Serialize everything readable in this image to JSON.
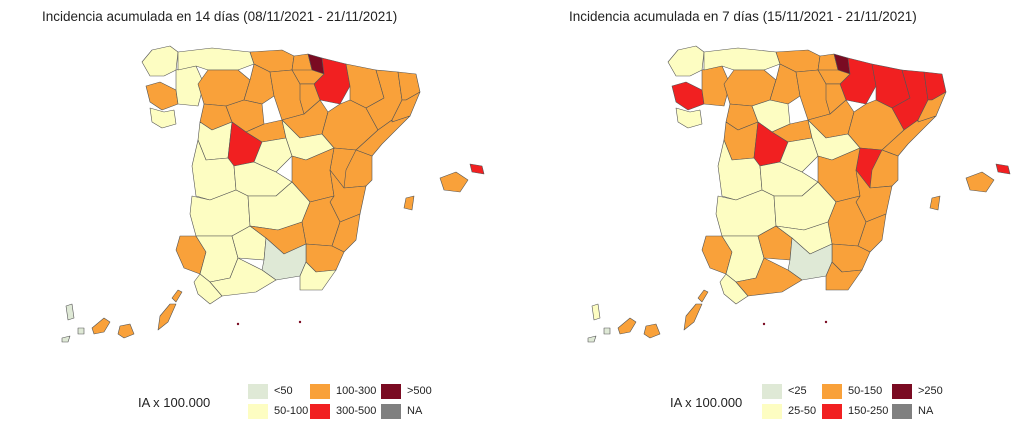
{
  "colors": {
    "light_green": "#dfe9d6",
    "light_yellow": "#fdfdc2",
    "orange": "#f9a13a",
    "red": "#f12021",
    "dark_red": "#7a0b22",
    "grey": "#808080",
    "border": "#555555"
  },
  "maps": [
    {
      "title": "Incidencia acumulada en 14 días (08/11/2021 - 21/11/2021)",
      "legend_title": "IA x 100.000",
      "legend_items": [
        {
          "label": "<50",
          "color": "#dfe9d6"
        },
        {
          "label": "50-100",
          "color": "#fdfdc2"
        },
        {
          "label": "100-300",
          "color": "#f9a13a"
        },
        {
          "label": "300-500",
          "color": "#f12021"
        },
        {
          "label": ">500",
          "color": "#7a0b22"
        },
        {
          "label": "NA",
          "color": "#808080"
        }
      ],
      "region_colors": {
        "galicia_n": "#fdfdc2",
        "galicia_w": "#f9a13a",
        "galicia_s": "#fdfdc2",
        "galicia_e": "#fdfdc2",
        "asturias": "#fdfdc2",
        "cantabria": "#f9a13a",
        "vizcaya": "#f9a13a",
        "guipuzcoa": "#7a0b22",
        "navarra": "#f12021",
        "alava": "#f9a13a",
        "leon": "#f9a13a",
        "palencia": "#f9a13a",
        "burgos": "#f9a13a",
        "zamora": "#f9a13a",
        "valladolid": "#f9a13a",
        "soria": "#f9a13a",
        "la_rioja": "#f9a13a",
        "huesca": "#f9a13a",
        "zaragoza": "#f9a13a",
        "teruel": "#f9a13a",
        "lleida": "#f9a13a",
        "girona": "#f9a13a",
        "barcelona": "#f9a13a",
        "tarragona": "#f9a13a",
        "salamanca": "#fdfdc2",
        "avila": "#f12021",
        "segovia": "#f9a13a",
        "madrid": "#fdfdc2",
        "guadalajara": "#fdfdc2",
        "caceres": "#fdfdc2",
        "toledo": "#fdfdc2",
        "cuenca": "#f9a13a",
        "castellon": "#f9a13a",
        "valencia": "#f9a13a",
        "badajoz": "#fdfdc2",
        "ciudad_real": "#fdfdc2",
        "albacete": "#f9a13a",
        "alicante": "#f9a13a",
        "murcia": "#f9a13a",
        "huelva": "#f9a13a",
        "sevilla": "#fdfdc2",
        "cordoba": "#fdfdc2",
        "jaen": "#f9a13a",
        "granada": "#dfe9d6",
        "almeria": "#fdfdc2",
        "cadiz": "#fdfdc2",
        "malaga": "#fdfdc2",
        "mallorca": "#f9a13a",
        "menorca": "#f12021",
        "ibiza": "#f9a13a",
        "tenerife": "#f9a13a",
        "gran_canaria": "#f9a13a",
        "la_palma": "#dfe9d6",
        "la_gomera": "#dfe9d6",
        "el_hierro": "#dfe9d6",
        "fuerteventura": "#f9a13a",
        "lanzarote": "#f9a13a"
      }
    },
    {
      "title": "Incidencia acumulada en 7 días (15/11/2021 - 21/11/2021)",
      "legend_title": "IA x 100.000",
      "legend_items": [
        {
          "label": "<25",
          "color": "#dfe9d6"
        },
        {
          "label": "25-50",
          "color": "#fdfdc2"
        },
        {
          "label": "50-150",
          "color": "#f9a13a"
        },
        {
          "label": "150-250",
          "color": "#f12021"
        },
        {
          "label": ">250",
          "color": "#7a0b22"
        },
        {
          "label": "NA",
          "color": "#808080"
        }
      ],
      "region_colors": {
        "galicia_n": "#fdfdc2",
        "galicia_w": "#f12021",
        "galicia_s": "#fdfdc2",
        "galicia_e": "#f9a13a",
        "asturias": "#fdfdc2",
        "cantabria": "#f9a13a",
        "vizcaya": "#f9a13a",
        "guipuzcoa": "#7a0b22",
        "navarra": "#f12021",
        "alava": "#f9a13a",
        "leon": "#f9a13a",
        "palencia": "#f9a13a",
        "burgos": "#f9a13a",
        "zamora": "#f9a13a",
        "valladolid": "#fdfdc2",
        "soria": "#f9a13a",
        "la_rioja": "#f9a13a",
        "huesca": "#f12021",
        "zaragoza": "#f9a13a",
        "teruel": "#f12021",
        "lleida": "#f12021",
        "girona": "#f12021",
        "barcelona": "#f9a13a",
        "tarragona": "#f9a13a",
        "salamanca": "#f9a13a",
        "avila": "#f12021",
        "segovia": "#f9a13a",
        "madrid": "#fdfdc2",
        "guadalajara": "#fdfdc2",
        "caceres": "#fdfdc2",
        "toledo": "#fdfdc2",
        "cuenca": "#f9a13a",
        "castellon": "#f9a13a",
        "valencia": "#f9a13a",
        "badajoz": "#fdfdc2",
        "ciudad_real": "#fdfdc2",
        "albacete": "#f9a13a",
        "alicante": "#f9a13a",
        "murcia": "#f9a13a",
        "huelva": "#f9a13a",
        "sevilla": "#fdfdc2",
        "cordoba": "#f9a13a",
        "jaen": "#fdfdc2",
        "granada": "#dfe9d6",
        "almeria": "#f9a13a",
        "cadiz": "#fdfdc2",
        "malaga": "#f9a13a",
        "mallorca": "#f9a13a",
        "menorca": "#f12021",
        "ibiza": "#f9a13a",
        "tenerife": "#f9a13a",
        "gran_canaria": "#f9a13a",
        "la_palma": "#fdfdc2",
        "la_gomera": "#dfe9d6",
        "el_hierro": "#dfe9d6",
        "fuerteventura": "#f9a13a",
        "lanzarote": "#f9a13a"
      }
    }
  ]
}
